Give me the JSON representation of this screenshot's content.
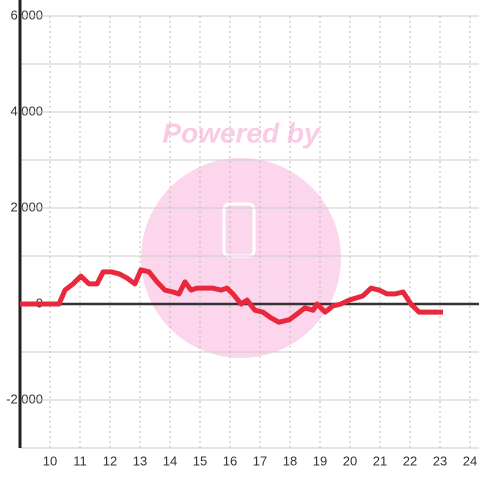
{
  "chart_data": {
    "type": "line",
    "watermark": "Powered by",
    "xlim": [
      9,
      24.3
    ],
    "xticks": [
      10,
      11,
      12,
      13,
      14,
      15,
      16,
      17,
      18,
      19,
      20,
      21,
      22,
      23,
      24
    ],
    "ylim": [
      -3000,
      6000
    ],
    "yticks": [
      {
        "value": 6000,
        "label": "6,000"
      },
      {
        "value": 4000,
        "label": "4,000"
      },
      {
        "value": 2000,
        "label": "2,000"
      },
      0,
      {
        "value": -2000,
        "label": "-2,000"
      }
    ],
    "minor_yticks": [
      5000,
      3000,
      1000,
      -1000,
      -3000
    ],
    "grid": true,
    "series": [
      {
        "color": "#e8283c",
        "x": [
          9.0,
          10.3,
          10.5,
          10.77,
          11.03,
          11.3,
          11.57,
          11.77,
          12.03,
          12.3,
          12.57,
          12.83,
          13.03,
          13.3,
          13.57,
          13.83,
          14.1,
          14.3,
          14.5,
          14.7,
          14.9,
          15.17,
          15.43,
          15.7,
          15.9,
          16.1,
          16.37,
          16.57,
          16.83,
          17.1,
          17.37,
          17.63,
          17.97,
          18.23,
          18.5,
          18.77,
          18.9,
          19.17,
          19.43,
          19.7,
          19.97,
          20.23,
          20.43,
          20.7,
          20.97,
          21.23,
          21.5,
          21.77,
          22.03,
          22.3,
          23.1
        ],
        "values": [
          0,
          0,
          290,
          420,
          580,
          420,
          420,
          670,
          670,
          630,
          540,
          420,
          710,
          670,
          460,
          290,
          250,
          210,
          460,
          290,
          330,
          330,
          330,
          290,
          330,
          210,
          0,
          80,
          -130,
          -170,
          -290,
          -380,
          -330,
          -210,
          -80,
          -130,
          0,
          -170,
          -40,
          0,
          80,
          130,
          170,
          330,
          290,
          210,
          210,
          250,
          0,
          -170,
          -170
        ]
      }
    ]
  }
}
